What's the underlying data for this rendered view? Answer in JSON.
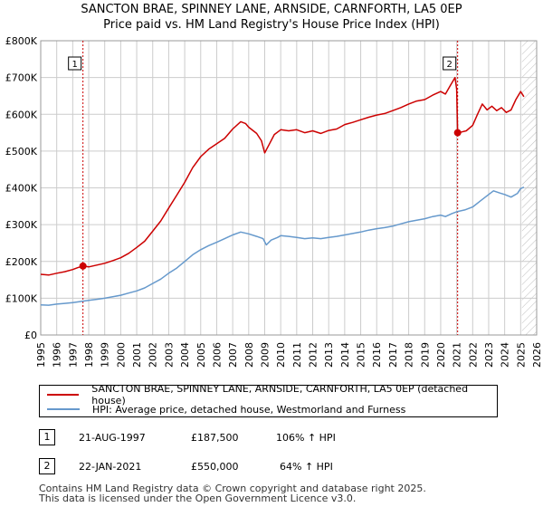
{
  "header": {
    "title_line1": "SANCTON BRAE, SPINNEY LANE, ARNSIDE, CARNFORTH, LA5 0EP",
    "title_line2": "Price paid vs. HM Land Registry's House Price Index (HPI)"
  },
  "colors": {
    "property": "#cc0000",
    "hpi": "#6699cc",
    "marker_line": "#cc0000",
    "grid": "#cccccc",
    "plot_bg": "#ffffff"
  },
  "chart_data": {
    "type": "line",
    "title": "Price paid vs. HM Land Registry's House Price Index (HPI)",
    "xlabel": "",
    "ylabel": "",
    "xlim": [
      1995,
      2026
    ],
    "ylim": [
      0,
      800000
    ],
    "x_ticks": [
      1995,
      1996,
      1997,
      1998,
      1999,
      2000,
      2001,
      2002,
      2003,
      2004,
      2005,
      2006,
      2007,
      2008,
      2009,
      2010,
      2011,
      2012,
      2013,
      2014,
      2015,
      2016,
      2017,
      2018,
      2019,
      2020,
      2021,
      2022,
      2023,
      2024,
      2025,
      2026
    ],
    "y_ticks": [
      0,
      100000,
      200000,
      300000,
      400000,
      500000,
      600000,
      700000,
      800000
    ],
    "y_tick_labels": [
      "£0",
      "£100K",
      "£200K",
      "£300K",
      "£400K",
      "£500K",
      "£600K",
      "£700K",
      "£800K"
    ],
    "grid": true,
    "hatched_after": 2025.08,
    "series": [
      {
        "name": "SANCTON BRAE, SPINNEY LANE, ARNSIDE, CARNFORTH, LA5 0EP (detached house)",
        "color": "#cc0000",
        "points": [
          [
            1995.0,
            165000
          ],
          [
            1995.5,
            163000
          ],
          [
            1996.0,
            168000
          ],
          [
            1996.5,
            172000
          ],
          [
            1997.0,
            178000
          ],
          [
            1997.3,
            183000
          ],
          [
            1997.64,
            187500
          ],
          [
            1998.0,
            185000
          ],
          [
            1998.5,
            190000
          ],
          [
            1999.0,
            195000
          ],
          [
            1999.5,
            202000
          ],
          [
            2000.0,
            210000
          ],
          [
            2000.5,
            222000
          ],
          [
            2001.0,
            238000
          ],
          [
            2001.5,
            255000
          ],
          [
            2002.0,
            282000
          ],
          [
            2002.5,
            310000
          ],
          [
            2003.0,
            345000
          ],
          [
            2003.5,
            380000
          ],
          [
            2004.0,
            415000
          ],
          [
            2004.5,
            455000
          ],
          [
            2005.0,
            485000
          ],
          [
            2005.5,
            505000
          ],
          [
            2006.0,
            520000
          ],
          [
            2006.5,
            535000
          ],
          [
            2007.0,
            560000
          ],
          [
            2007.5,
            580000
          ],
          [
            2007.8,
            575000
          ],
          [
            2008.0,
            565000
          ],
          [
            2008.5,
            548000
          ],
          [
            2008.8,
            528000
          ],
          [
            2009.0,
            495000
          ],
          [
            2009.3,
            520000
          ],
          [
            2009.6,
            545000
          ],
          [
            2010.0,
            558000
          ],
          [
            2010.5,
            555000
          ],
          [
            2011.0,
            558000
          ],
          [
            2011.5,
            550000
          ],
          [
            2012.0,
            555000
          ],
          [
            2012.5,
            548000
          ],
          [
            2013.0,
            556000
          ],
          [
            2013.5,
            560000
          ],
          [
            2014.0,
            572000
          ],
          [
            2014.5,
            578000
          ],
          [
            2015.0,
            585000
          ],
          [
            2015.5,
            592000
          ],
          [
            2016.0,
            598000
          ],
          [
            2016.5,
            602000
          ],
          [
            2017.0,
            610000
          ],
          [
            2017.5,
            618000
          ],
          [
            2018.0,
            628000
          ],
          [
            2018.5,
            636000
          ],
          [
            2019.0,
            640000
          ],
          [
            2019.5,
            652000
          ],
          [
            2020.0,
            662000
          ],
          [
            2020.3,
            655000
          ],
          [
            2020.6,
            678000
          ],
          [
            2020.9,
            700000
          ],
          [
            2021.0,
            668000
          ],
          [
            2021.06,
            550000
          ],
          [
            2021.3,
            552000
          ],
          [
            2021.6,
            555000
          ],
          [
            2022.0,
            570000
          ],
          [
            2022.3,
            600000
          ],
          [
            2022.6,
            628000
          ],
          [
            2022.9,
            612000
          ],
          [
            2023.2,
            622000
          ],
          [
            2023.5,
            610000
          ],
          [
            2023.8,
            618000
          ],
          [
            2024.1,
            605000
          ],
          [
            2024.4,
            612000
          ],
          [
            2024.7,
            640000
          ],
          [
            2025.0,
            662000
          ],
          [
            2025.2,
            648000
          ]
        ]
      },
      {
        "name": "HPI: Average price, detached house, Westmorland and Furness",
        "color": "#6699cc",
        "points": [
          [
            1995.0,
            82000
          ],
          [
            1995.5,
            81000
          ],
          [
            1996.0,
            84000
          ],
          [
            1996.5,
            86000
          ],
          [
            1997.0,
            88000
          ],
          [
            1997.5,
            91000
          ],
          [
            1998.0,
            94000
          ],
          [
            1998.5,
            97000
          ],
          [
            1999.0,
            100000
          ],
          [
            1999.5,
            104000
          ],
          [
            2000.0,
            108000
          ],
          [
            2000.5,
            114000
          ],
          [
            2001.0,
            120000
          ],
          [
            2001.5,
            128000
          ],
          [
            2002.0,
            140000
          ],
          [
            2002.5,
            152000
          ],
          [
            2003.0,
            168000
          ],
          [
            2003.5,
            182000
          ],
          [
            2004.0,
            200000
          ],
          [
            2004.5,
            218000
          ],
          [
            2005.0,
            232000
          ],
          [
            2005.5,
            243000
          ],
          [
            2006.0,
            252000
          ],
          [
            2006.5,
            262000
          ],
          [
            2007.0,
            272000
          ],
          [
            2007.5,
            280000
          ],
          [
            2008.0,
            275000
          ],
          [
            2008.5,
            268000
          ],
          [
            2008.9,
            262000
          ],
          [
            2009.1,
            245000
          ],
          [
            2009.4,
            258000
          ],
          [
            2009.8,
            265000
          ],
          [
            2010.0,
            270000
          ],
          [
            2010.5,
            268000
          ],
          [
            2011.0,
            265000
          ],
          [
            2011.5,
            262000
          ],
          [
            2012.0,
            264000
          ],
          [
            2012.5,
            262000
          ],
          [
            2013.0,
            265000
          ],
          [
            2013.5,
            268000
          ],
          [
            2014.0,
            272000
          ],
          [
            2014.5,
            276000
          ],
          [
            2015.0,
            280000
          ],
          [
            2015.5,
            285000
          ],
          [
            2016.0,
            289000
          ],
          [
            2016.5,
            292000
          ],
          [
            2017.0,
            296000
          ],
          [
            2017.5,
            302000
          ],
          [
            2018.0,
            308000
          ],
          [
            2018.5,
            312000
          ],
          [
            2019.0,
            316000
          ],
          [
            2019.5,
            322000
          ],
          [
            2020.0,
            326000
          ],
          [
            2020.3,
            322000
          ],
          [
            2020.7,
            330000
          ],
          [
            2021.0,
            335000
          ],
          [
            2021.5,
            340000
          ],
          [
            2022.0,
            348000
          ],
          [
            2022.5,
            365000
          ],
          [
            2023.0,
            382000
          ],
          [
            2023.3,
            392000
          ],
          [
            2023.7,
            386000
          ],
          [
            2024.0,
            382000
          ],
          [
            2024.4,
            375000
          ],
          [
            2024.8,
            385000
          ],
          [
            2025.0,
            398000
          ],
          [
            2025.2,
            402000
          ]
        ]
      }
    ],
    "sales": [
      {
        "label": "1",
        "x": 1997.64,
        "price": 187500
      },
      {
        "label": "2",
        "x": 2021.06,
        "price": 550000
      }
    ]
  },
  "legend": {
    "property_label": "SANCTON BRAE, SPINNEY LANE, ARNSIDE, CARNFORTH, LA5 0EP (detached house)",
    "hpi_label": "HPI: Average price, detached house, Westmorland and Furness"
  },
  "transactions": [
    {
      "num": "1",
      "date": "21-AUG-1997",
      "price": "£187,500",
      "hpi_change": "106% ↑ HPI"
    },
    {
      "num": "2",
      "date": "22-JAN-2021",
      "price": "£550,000",
      "hpi_change": "64% ↑ HPI"
    }
  ],
  "footer": {
    "line1": "Contains HM Land Registry data © Crown copyright and database right 2025.",
    "line2": "This data is licensed under the Open Government Licence v3.0."
  }
}
